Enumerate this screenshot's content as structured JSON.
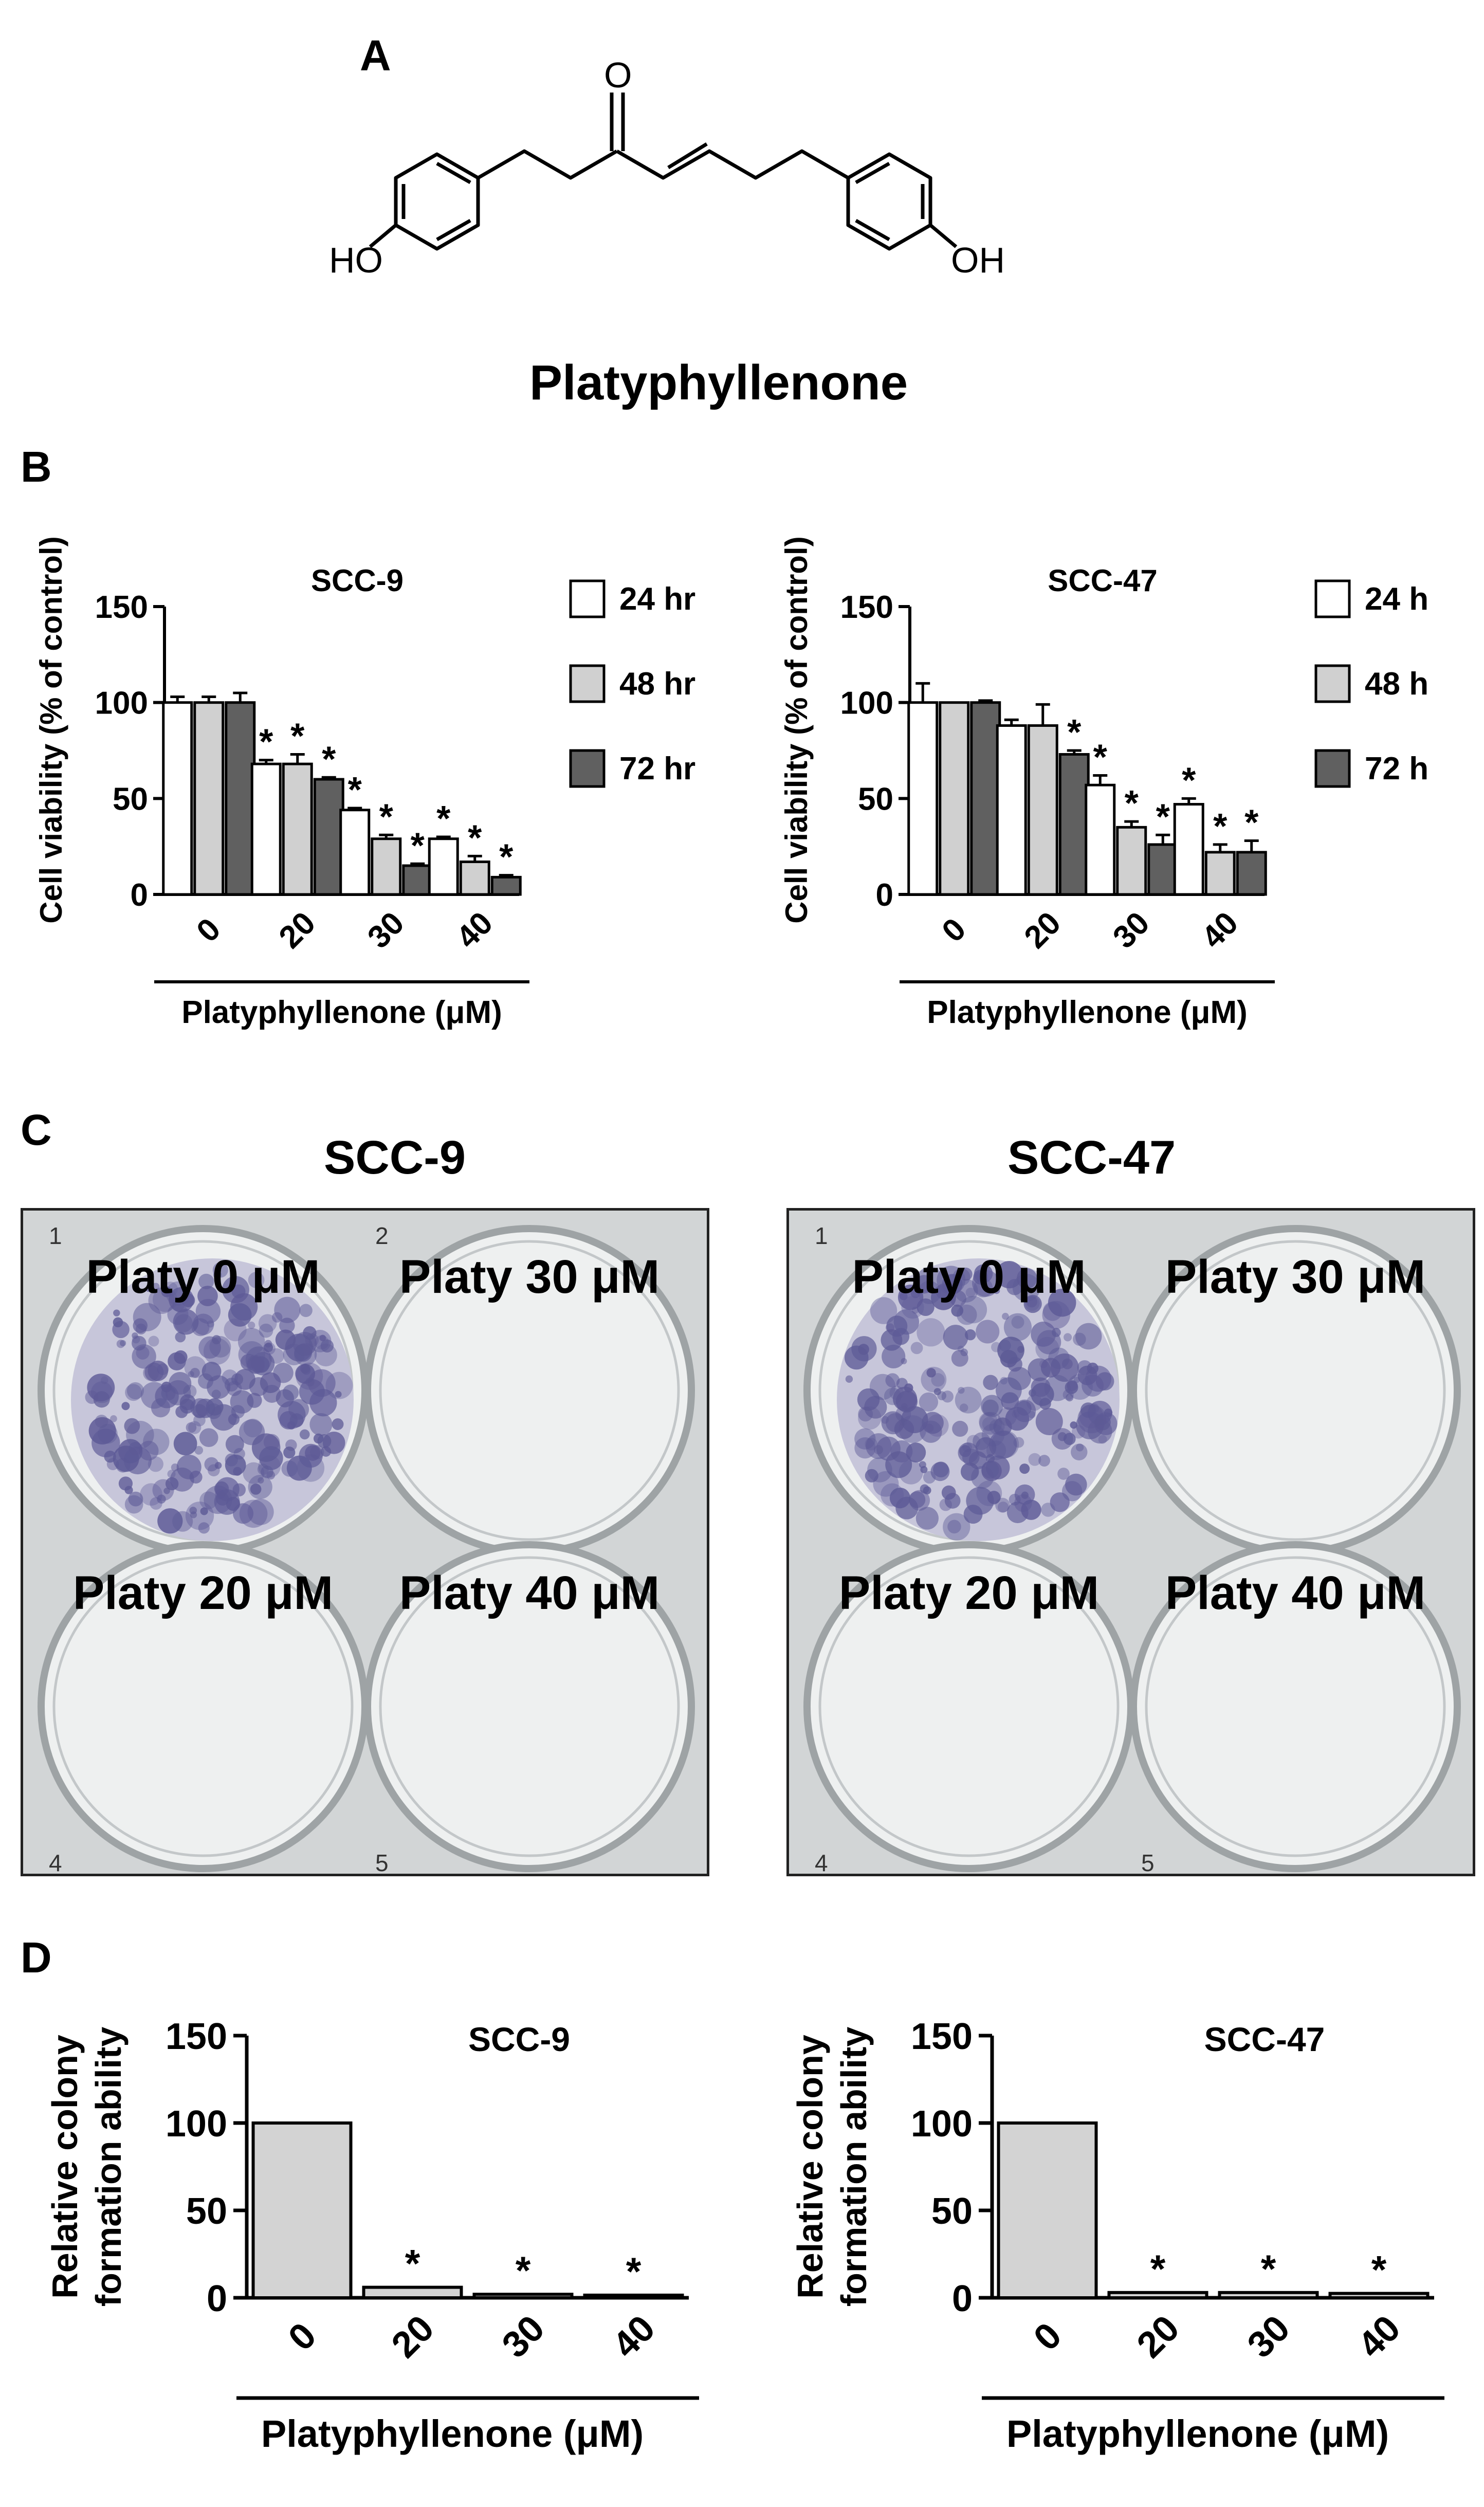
{
  "panels": {
    "A": {
      "letter": "A",
      "compound_name": "Platyphyllenone",
      "atom_labels": {
        "left_oh": "HO",
        "right_oh": "OH",
        "carbonyl_o": "O"
      }
    },
    "B": {
      "letter": "B",
      "xlabel": "Platyphyllenone (μM)",
      "ylabel": "Cell viability (% of control)"
    },
    "C": {
      "letter": "C",
      "plates": [
        {
          "title": "SCC-9",
          "wells": [
            {
              "label": "Platy 0 μM",
              "number": "1",
              "colonies": "dense"
            },
            {
              "label": "Platy 30 μM",
              "number": "2",
              "colonies": "none"
            },
            {
              "label": "Platy 20 μM",
              "number": "4",
              "colonies": "none"
            },
            {
              "label": "Platy 40 μM",
              "number": "5",
              "colonies": "none"
            }
          ]
        },
        {
          "title": "SCC-47",
          "wells": [
            {
              "label": "Platy 0 μM",
              "number": "1",
              "colonies": "dense"
            },
            {
              "label": "Platy 30 μM",
              "number": "",
              "colonies": "none"
            },
            {
              "label": "Platy 20 μM",
              "number": "4",
              "colonies": "none"
            },
            {
              "label": "Platy 40 μM",
              "number": "5",
              "colonies": "none"
            }
          ]
        }
      ]
    },
    "D": {
      "letter": "D",
      "xlabel": "Platyphyllenone (μM)",
      "ylabel_line1": "Relative colony",
      "ylabel_line2": "formation ability"
    }
  },
  "chart_data": [
    {
      "type": "bar",
      "panel": "B",
      "title": "SCC-9",
      "categories": [
        "0",
        "20",
        "30",
        "40"
      ],
      "xlabel": "Platyphyllenone (μM)",
      "ylabel": "Cell viability (% of control)",
      "ylim": [
        0,
        150
      ],
      "yticks": [
        "0",
        "50",
        "100",
        "150"
      ],
      "legend_position": "top-right",
      "series": [
        {
          "name": "24 hr",
          "color": "#ffffff",
          "values": [
            100,
            68,
            44,
            29
          ],
          "errors": [
            3,
            2,
            1,
            1
          ],
          "significant": [
            false,
            true,
            true,
            true
          ]
        },
        {
          "name": "48 hr",
          "color": "#d0d0d0",
          "values": [
            100,
            68,
            29,
            17
          ],
          "errors": [
            3,
            5,
            2,
            3
          ],
          "significant": [
            false,
            true,
            true,
            true
          ]
        },
        {
          "name": "72 hr",
          "color": "#606060",
          "values": [
            100,
            60,
            15,
            9
          ],
          "errors": [
            5,
            1,
            1,
            1
          ],
          "significant": [
            false,
            true,
            true,
            true
          ]
        }
      ],
      "significance_marker": "*"
    },
    {
      "type": "bar",
      "panel": "B",
      "title": "SCC-47",
      "categories": [
        "0",
        "20",
        "30",
        "40"
      ],
      "xlabel": "Platyphyllenone (μM)",
      "ylabel": "Cell viability (% of control)",
      "ylim": [
        0,
        150
      ],
      "yticks": [
        "0",
        "50",
        "100",
        "150"
      ],
      "legend_position": "top-right",
      "series": [
        {
          "name": "24 h",
          "color": "#ffffff",
          "values": [
            100,
            88,
            57,
            47
          ],
          "errors": [
            10,
            3,
            5,
            3
          ],
          "significant": [
            false,
            false,
            true,
            true
          ]
        },
        {
          "name": "48 h",
          "color": "#d0d0d0",
          "values": [
            100,
            88,
            35,
            22
          ],
          "errors": [
            0,
            11,
            3,
            4
          ],
          "significant": [
            false,
            false,
            true,
            true
          ]
        },
        {
          "name": "72 h",
          "color": "#606060",
          "values": [
            100,
            73,
            26,
            22
          ],
          "errors": [
            1,
            2,
            5,
            6
          ],
          "significant": [
            false,
            true,
            true,
            true
          ]
        }
      ],
      "significance_marker": "*"
    },
    {
      "type": "bar",
      "panel": "D",
      "title": "SCC-9",
      "categories": [
        "0",
        "20",
        "30",
        "40"
      ],
      "xlabel": "Platyphyllenone (μM)",
      "ylabel": "Relative colony formation ability",
      "ylim": [
        0,
        150
      ],
      "yticks": [
        "0",
        "50",
        "100",
        "150"
      ],
      "series": [
        {
          "color": "#d3d3d3",
          "values": [
            100,
            6,
            2,
            1.5
          ],
          "significant": [
            false,
            true,
            true,
            true
          ]
        }
      ],
      "significance_marker": "*"
    },
    {
      "type": "bar",
      "panel": "D",
      "title": "SCC-47",
      "categories": [
        "0",
        "20",
        "30",
        "40"
      ],
      "xlabel": "Platyphyllenone (μM)",
      "ylabel": "Relative colony formation ability",
      "ylim": [
        0,
        150
      ],
      "yticks": [
        "0",
        "50",
        "100",
        "150"
      ],
      "series": [
        {
          "color": "#d3d3d3",
          "values": [
            100,
            3,
            3,
            2.5
          ],
          "significant": [
            false,
            true,
            true,
            true
          ]
        }
      ],
      "significance_marker": "*"
    }
  ]
}
